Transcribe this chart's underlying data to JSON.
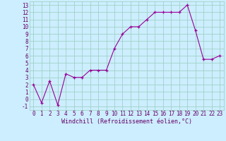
{
  "x": [
    0,
    1,
    2,
    3,
    4,
    5,
    6,
    7,
    8,
    9,
    10,
    11,
    12,
    13,
    14,
    15,
    16,
    17,
    18,
    19,
    20,
    21,
    22,
    23
  ],
  "y": [
    2,
    -0.5,
    2.5,
    -0.8,
    3.5,
    3.0,
    3.0,
    4.0,
    4.0,
    4.0,
    7.0,
    9.0,
    10.0,
    10.0,
    11.0,
    12.0,
    12.0,
    12.0,
    12.0,
    13.0,
    9.5,
    5.5,
    5.5,
    6.0
  ],
  "line_color": "#990099",
  "marker": "+",
  "bg_color": "#cceeff",
  "grid_color": "#99ccbb",
  "xlabel": "Windchill (Refroidissement éolien,°C)",
  "xlim": [
    -0.5,
    23.5
  ],
  "ylim": [
    -1.5,
    13.5
  ],
  "yticks": [
    -1,
    0,
    1,
    2,
    3,
    4,
    5,
    6,
    7,
    8,
    9,
    10,
    11,
    12,
    13
  ],
  "xticks": [
    0,
    1,
    2,
    3,
    4,
    5,
    6,
    7,
    8,
    9,
    10,
    11,
    12,
    13,
    14,
    15,
    16,
    17,
    18,
    19,
    20,
    21,
    22,
    23
  ],
  "tick_color": "#660066",
  "font_size": 5.5,
  "xlabel_fontsize": 6.0,
  "linewidth": 0.8,
  "markersize": 3.5,
  "markeredgewidth": 0.9
}
